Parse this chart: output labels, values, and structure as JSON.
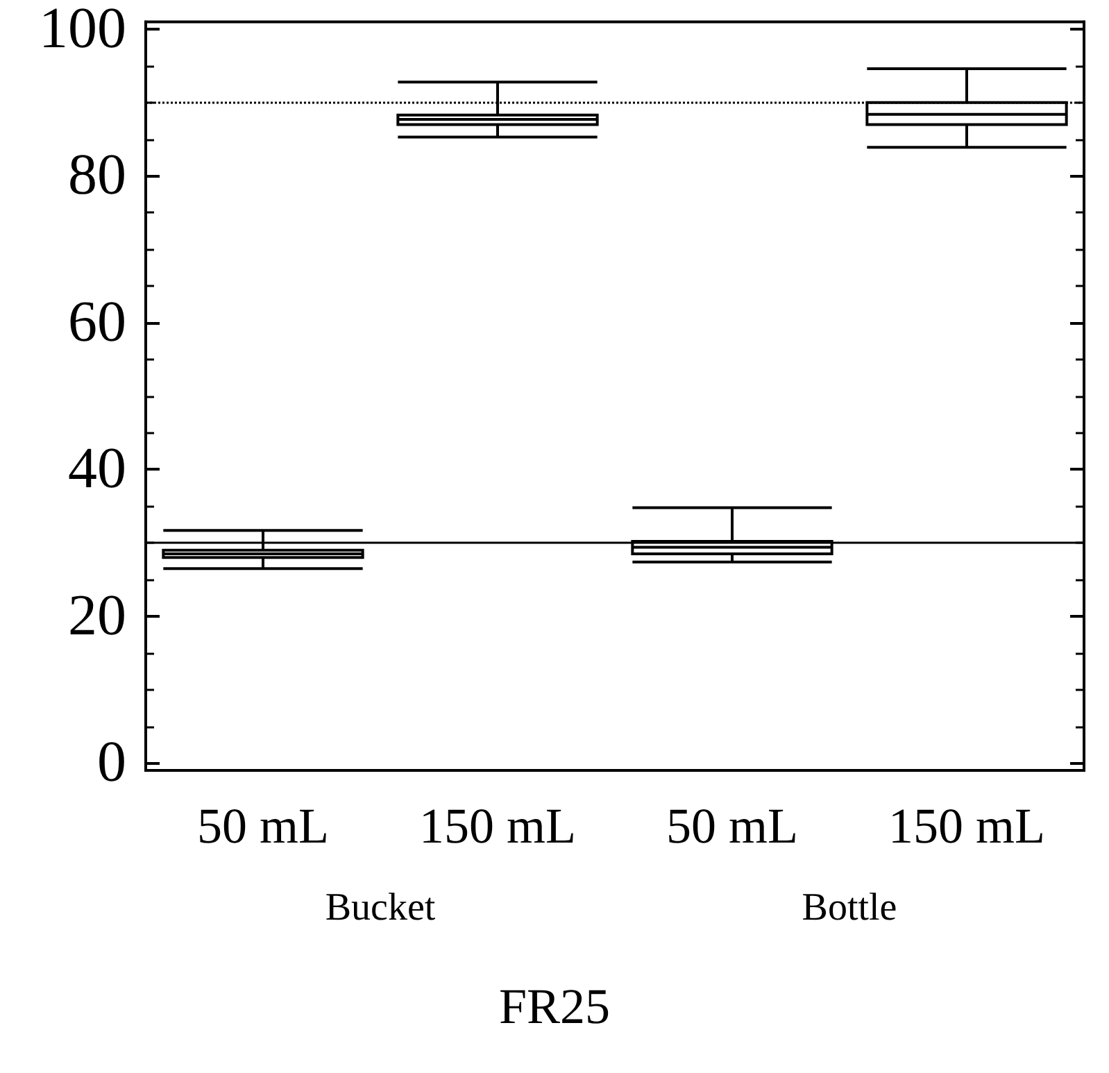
{
  "chart_data": {
    "type": "box",
    "title": "FR25",
    "categories": [
      "50 mL",
      "150 mL",
      "50 mL",
      "150 mL"
    ],
    "annotations": [
      "Bucket",
      "Bottle"
    ],
    "boxes": [
      {
        "low": 26.5,
        "q1": 28,
        "median": 28.5,
        "q3": 29,
        "high": 31.7
      },
      {
        "low": 85.3,
        "q1": 87,
        "median": 87.7,
        "q3": 88.3,
        "high": 92.8
      },
      {
        "low": 27.4,
        "q1": 28.5,
        "median": 29.4,
        "q3": 30.2,
        "high": 34.8
      },
      {
        "low": 83.9,
        "q1": 87,
        "median": 88.4,
        "q3": 90,
        "high": 94.6
      }
    ],
    "color": "#000000",
    "ylim": [
      -1,
      101
    ],
    "yticks": [
      0,
      20,
      40,
      60,
      80,
      100
    ],
    "ref_lines": [
      {
        "axis": "y",
        "value": 30,
        "line_style": "solid"
      },
      {
        "axis": "y",
        "value": 90,
        "line_style": "dotted"
      }
    ]
  }
}
